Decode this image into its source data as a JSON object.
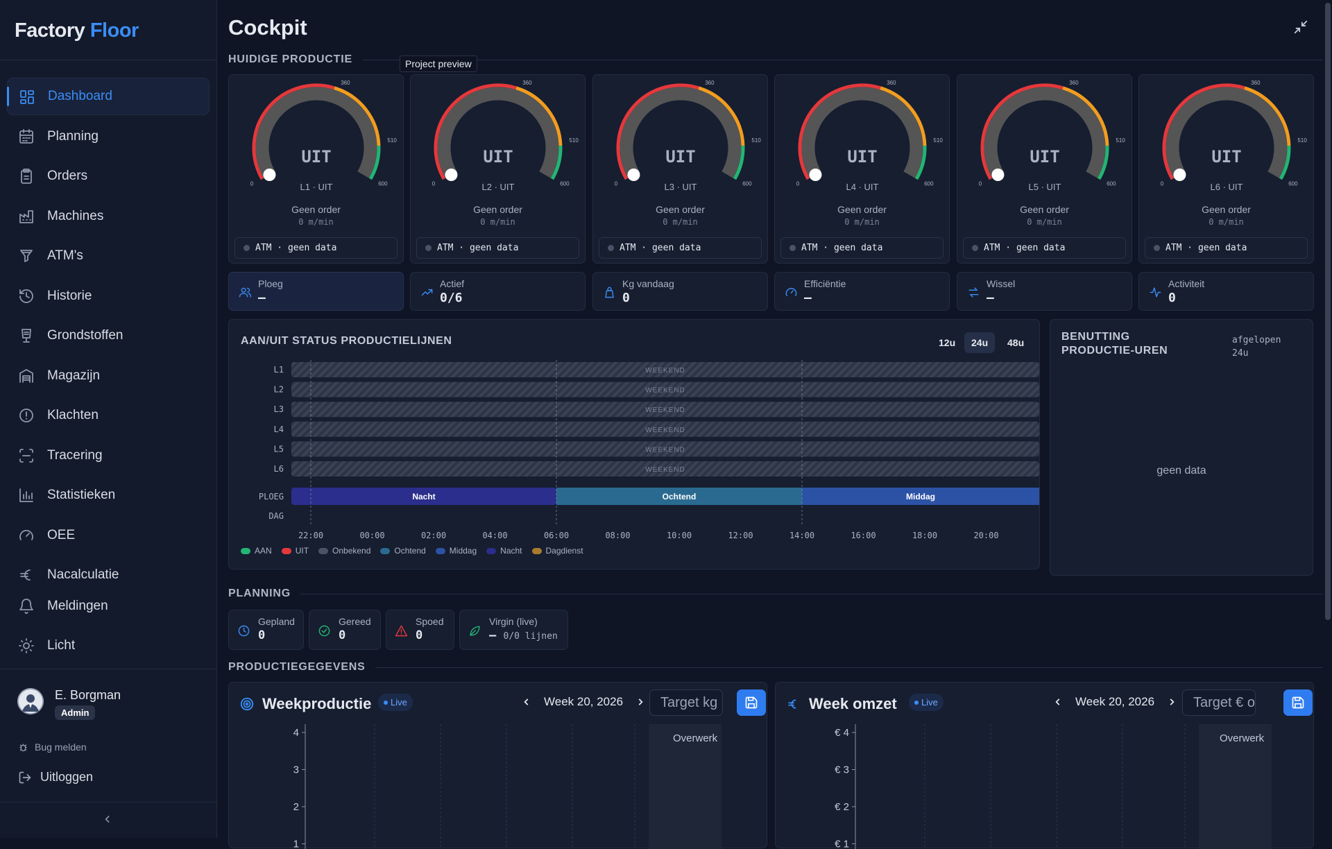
{
  "app": {
    "brand1": "Factory",
    "brand2": "Floor"
  },
  "nav": [
    {
      "label": "Dashboard",
      "icon": "dashboard-icon"
    },
    {
      "label": "Planning",
      "icon": "calendar-icon"
    },
    {
      "label": "Orders",
      "icon": "clipboard-icon"
    },
    {
      "label": "Machines",
      "icon": "factory-icon"
    },
    {
      "label": "ATM's",
      "icon": "funnel-icon"
    },
    {
      "label": "Historie",
      "icon": "history-icon"
    },
    {
      "label": "Grondstoffen",
      "icon": "materials-icon"
    },
    {
      "label": "Magazijn",
      "icon": "warehouse-icon"
    },
    {
      "label": "Klachten",
      "icon": "alert-circle-icon"
    },
    {
      "label": "Tracering",
      "icon": "scan-icon"
    },
    {
      "label": "Statistieken",
      "icon": "bar-chart-icon"
    },
    {
      "label": "OEE",
      "icon": "speedometer-icon"
    },
    {
      "label": "Nacalculatie",
      "icon": "euro-icon"
    },
    {
      "label": "Meldingen",
      "icon": "bell-icon"
    },
    {
      "label": "Licht",
      "icon": "sun-icon"
    }
  ],
  "user": {
    "name": "E. Borgman",
    "role": "Admin"
  },
  "footer": {
    "bug": "Bug melden",
    "logout": "Uitloggen"
  },
  "page": {
    "title": "Cockpit",
    "tooltip": "Project preview"
  },
  "sections": {
    "current": "HUIDIGE PRODUCTIE",
    "planning": "PLANNING",
    "production": "PRODUCTIEGEGEVENS"
  },
  "gauges": [
    {
      "state": "UIT",
      "label": "L1 · UIT",
      "order": "Geen order",
      "speed": "0 m/min",
      "atm": "ATM · geen data"
    },
    {
      "state": "UIT",
      "label": "L2 · UIT",
      "order": "Geen order",
      "speed": "0 m/min",
      "atm": "ATM · geen data"
    },
    {
      "state": "UIT",
      "label": "L3 · UIT",
      "order": "Geen order",
      "speed": "0 m/min",
      "atm": "ATM · geen data"
    },
    {
      "state": "UIT",
      "label": "L4 · UIT",
      "order": "Geen order",
      "speed": "0 m/min",
      "atm": "ATM · geen data"
    },
    {
      "state": "UIT",
      "label": "L5 · UIT",
      "order": "Geen order",
      "speed": "0 m/min",
      "atm": "ATM · geen data"
    },
    {
      "state": "UIT",
      "label": "L6 · UIT",
      "order": "Geen order",
      "speed": "0 m/min",
      "atm": "ATM · geen data"
    }
  ],
  "gauge_ticks": {
    "min": "0",
    "t1": "360",
    "t2": "510",
    "max": "600"
  },
  "gauge_speed": 0,
  "stats": [
    {
      "label": "Ploeg",
      "value": "—",
      "icon": "users-icon"
    },
    {
      "label": "Actief",
      "value": "0/6",
      "icon": "trend-up-icon"
    },
    {
      "label": "Kg vandaag",
      "value": "0",
      "icon": "weight-icon"
    },
    {
      "label": "Efficiëntie",
      "value": "—",
      "icon": "gauge-icon"
    },
    {
      "label": "Wissel",
      "value": "—",
      "icon": "swap-icon"
    },
    {
      "label": "Activiteit",
      "value": "0",
      "icon": "activity-icon"
    }
  ],
  "status": {
    "title": "AAN/UIT STATUS PRODUCTIELIJNEN",
    "ranges": [
      "12u",
      "24u",
      "48u"
    ],
    "selected_range": "24u",
    "lines": [
      "L1",
      "L2",
      "L3",
      "L4",
      "L5",
      "L6"
    ],
    "weekend_label": "WEEKEND",
    "ploeg_label": "PLOEG",
    "dag_label": "DAG",
    "shifts": [
      {
        "name": "Nacht",
        "color": "#2b2e8c"
      },
      {
        "name": "Ochtend",
        "color": "#2a6a90"
      },
      {
        "name": "Middag",
        "color": "#2c52a6"
      }
    ],
    "times": [
      "22:00",
      "00:00",
      "02:00",
      "04:00",
      "06:00",
      "08:00",
      "10:00",
      "12:00",
      "14:00",
      "16:00",
      "18:00",
      "20:00"
    ],
    "legend": [
      {
        "label": "AAN",
        "color": "#22b573"
      },
      {
        "label": "UIT",
        "color": "#e5383b"
      },
      {
        "label": "Onbekend",
        "color": "#4a5366"
      },
      {
        "label": "Ochtend",
        "color": "#2a6a90"
      },
      {
        "label": "Middag",
        "color": "#2c52a6"
      },
      {
        "label": "Nacht",
        "color": "#2b2e8c"
      },
      {
        "label": "Dagdienst",
        "color": "#a87a2e"
      }
    ]
  },
  "benutting": {
    "title": "BENUTTING PRODUCTIE-UREN",
    "period": "afgelopen 24u",
    "empty": "geen data"
  },
  "planning": [
    {
      "label": "Gepland",
      "value": "0",
      "icon": "clock-icon",
      "color": "#3b8df6"
    },
    {
      "label": "Gereed",
      "value": "0",
      "icon": "check-circle-icon",
      "color": "#22b573"
    },
    {
      "label": "Spoed",
      "value": "0",
      "icon": "warning-icon",
      "color": "#e5383b"
    },
    {
      "label": "Virgin (live)",
      "value": "—",
      "extra": "0/0 lijnen",
      "icon": "leaf-icon",
      "color": "#22b573"
    }
  ],
  "weekproductie": {
    "title": "Weekproductie",
    "live": "Live",
    "week": "Week 20, 2026",
    "target_placeholder": "Target kg",
    "overwerk": "Overwerk",
    "yticks": [
      "4",
      "3",
      "2",
      "1"
    ]
  },
  "weekomzet": {
    "title": "Week omzet",
    "live": "Live",
    "week": "Week 20, 2026",
    "target_placeholder": "Target € omzet",
    "overwerk": "Overwerk",
    "yticks": [
      "€ 4",
      "€ 3",
      "€ 2",
      "€ 1"
    ]
  }
}
